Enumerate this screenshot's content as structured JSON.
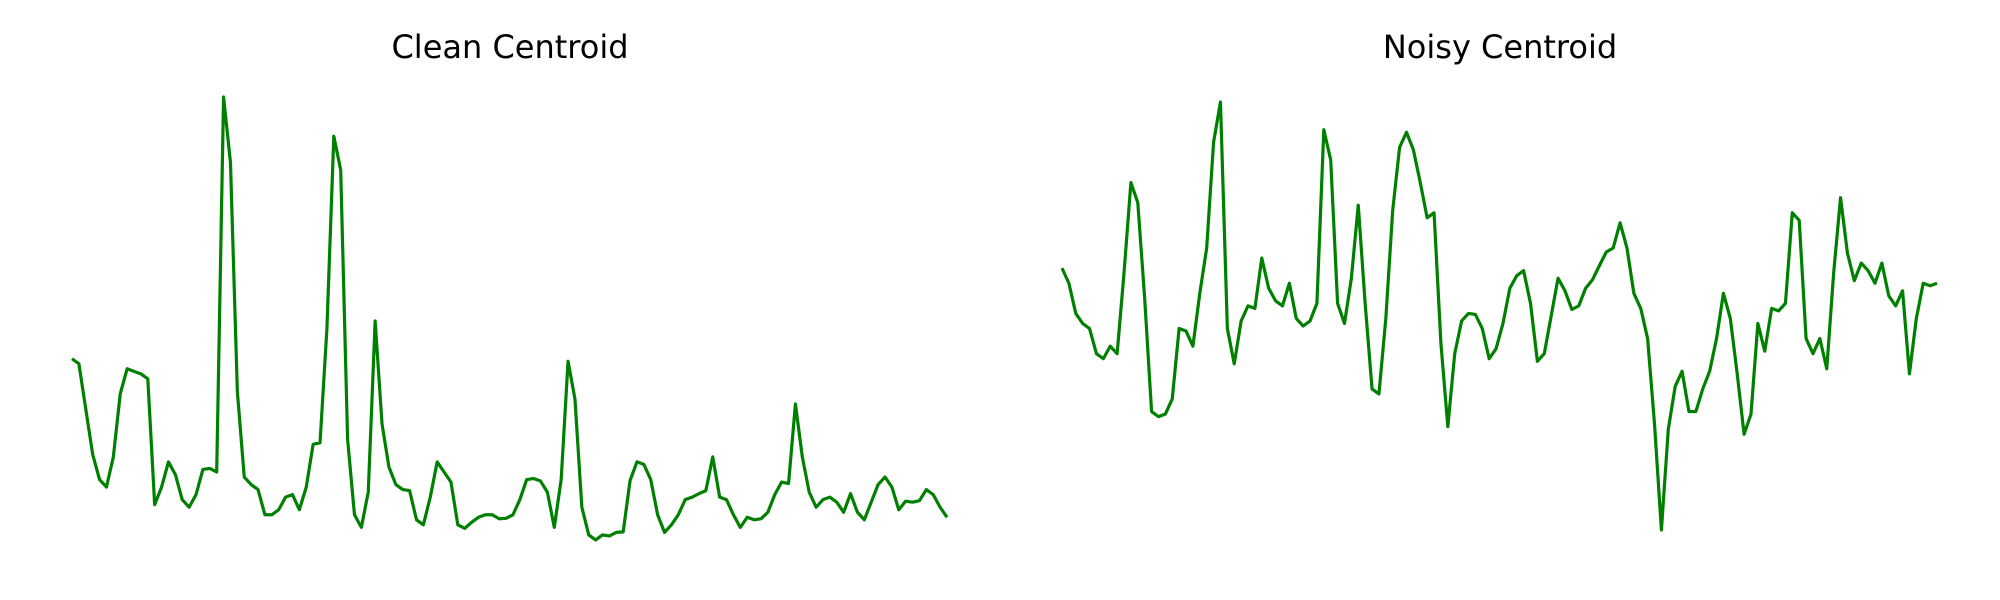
{
  "chart_data": [
    {
      "type": "line",
      "title": "Clean Centroid",
      "xlabel": "",
      "ylabel": "",
      "axes_visible": false,
      "grid": false,
      "x_range": [
        0,
        127
      ],
      "ylim": [
        0.1,
        1.0
      ],
      "series": [
        {
          "color": "#008000",
          "values": [
            0.48,
            0.47,
            0.38,
            0.29,
            0.24,
            0.225,
            0.285,
            0.41,
            0.46,
            0.455,
            0.45,
            0.44,
            0.19,
            0.225,
            0.275,
            0.25,
            0.2,
            0.185,
            0.21,
            0.26,
            0.262,
            0.255,
            1.0,
            0.87,
            0.415,
            0.245,
            0.23,
            0.22,
            0.17,
            0.17,
            0.18,
            0.205,
            0.21,
            0.18,
            0.225,
            0.31,
            0.313,
            0.54,
            0.922,
            0.855,
            0.32,
            0.17,
            0.145,
            0.215,
            0.555,
            0.35,
            0.265,
            0.23,
            0.22,
            0.218,
            0.16,
            0.15,
            0.205,
            0.275,
            0.255,
            0.235,
            0.15,
            0.143,
            0.155,
            0.165,
            0.17,
            0.17,
            0.162,
            0.163,
            0.17,
            0.2,
            0.24,
            0.242,
            0.237,
            0.215,
            0.145,
            0.24,
            0.475,
            0.4,
            0.185,
            0.13,
            0.12,
            0.13,
            0.128,
            0.135,
            0.136,
            0.238,
            0.275,
            0.27,
            0.24,
            0.17,
            0.135,
            0.15,
            0.17,
            0.2,
            0.205,
            0.212,
            0.218,
            0.285,
            0.205,
            0.2,
            0.17,
            0.145,
            0.165,
            0.16,
            0.162,
            0.175,
            0.21,
            0.235,
            0.232,
            0.39,
            0.285,
            0.215,
            0.185,
            0.2,
            0.205,
            0.195,
            0.175,
            0.212,
            0.175,
            0.16,
            0.195,
            0.23,
            0.245,
            0.225,
            0.18,
            0.197,
            0.195,
            0.198,
            0.22,
            0.21,
            0.185,
            0.165
          ]
        }
      ]
    },
    {
      "type": "line",
      "title": "Noisy Centroid",
      "xlabel": "",
      "ylabel": "",
      "axes_visible": false,
      "grid": false,
      "x_range": [
        0,
        127
      ],
      "ylim": [
        0.1,
        1.0
      ],
      "series": [
        {
          "color": "#008000",
          "values": [
            0.66,
            0.63,
            0.57,
            0.55,
            0.54,
            0.49,
            0.48,
            0.505,
            0.49,
            0.65,
            0.83,
            0.79,
            0.6,
            0.375,
            0.365,
            0.37,
            0.4,
            0.54,
            0.535,
            0.505,
            0.61,
            0.7,
            0.91,
            0.99,
            0.54,
            0.47,
            0.555,
            0.585,
            0.58,
            0.68,
            0.62,
            0.595,
            0.585,
            0.63,
            0.56,
            0.545,
            0.555,
            0.59,
            0.935,
            0.875,
            0.59,
            0.55,
            0.64,
            0.785,
            0.59,
            0.42,
            0.41,
            0.56,
            0.775,
            0.9,
            0.93,
            0.895,
            0.83,
            0.76,
            0.77,
            0.51,
            0.345,
            0.49,
            0.555,
            0.57,
            0.568,
            0.54,
            0.48,
            0.5,
            0.55,
            0.62,
            0.645,
            0.655,
            0.59,
            0.475,
            0.49,
            0.565,
            0.64,
            0.615,
            0.578,
            0.585,
            0.62,
            0.637,
            0.665,
            0.692,
            0.7,
            0.75,
            0.7,
            0.61,
            0.58,
            0.52,
            0.35,
            0.14,
            0.34,
            0.425,
            0.455,
            0.375,
            0.375,
            0.42,
            0.455,
            0.52,
            0.61,
            0.56,
            0.45,
            0.33,
            0.37,
            0.55,
            0.495,
            0.58,
            0.575,
            0.59,
            0.77,
            0.755,
            0.52,
            0.49,
            0.52,
            0.46,
            0.65,
            0.8,
            0.69,
            0.635,
            0.67,
            0.655,
            0.63,
            0.67,
            0.605,
            0.585,
            0.615,
            0.45,
            0.56,
            0.63,
            0.625,
            0.63
          ]
        }
      ]
    }
  ]
}
